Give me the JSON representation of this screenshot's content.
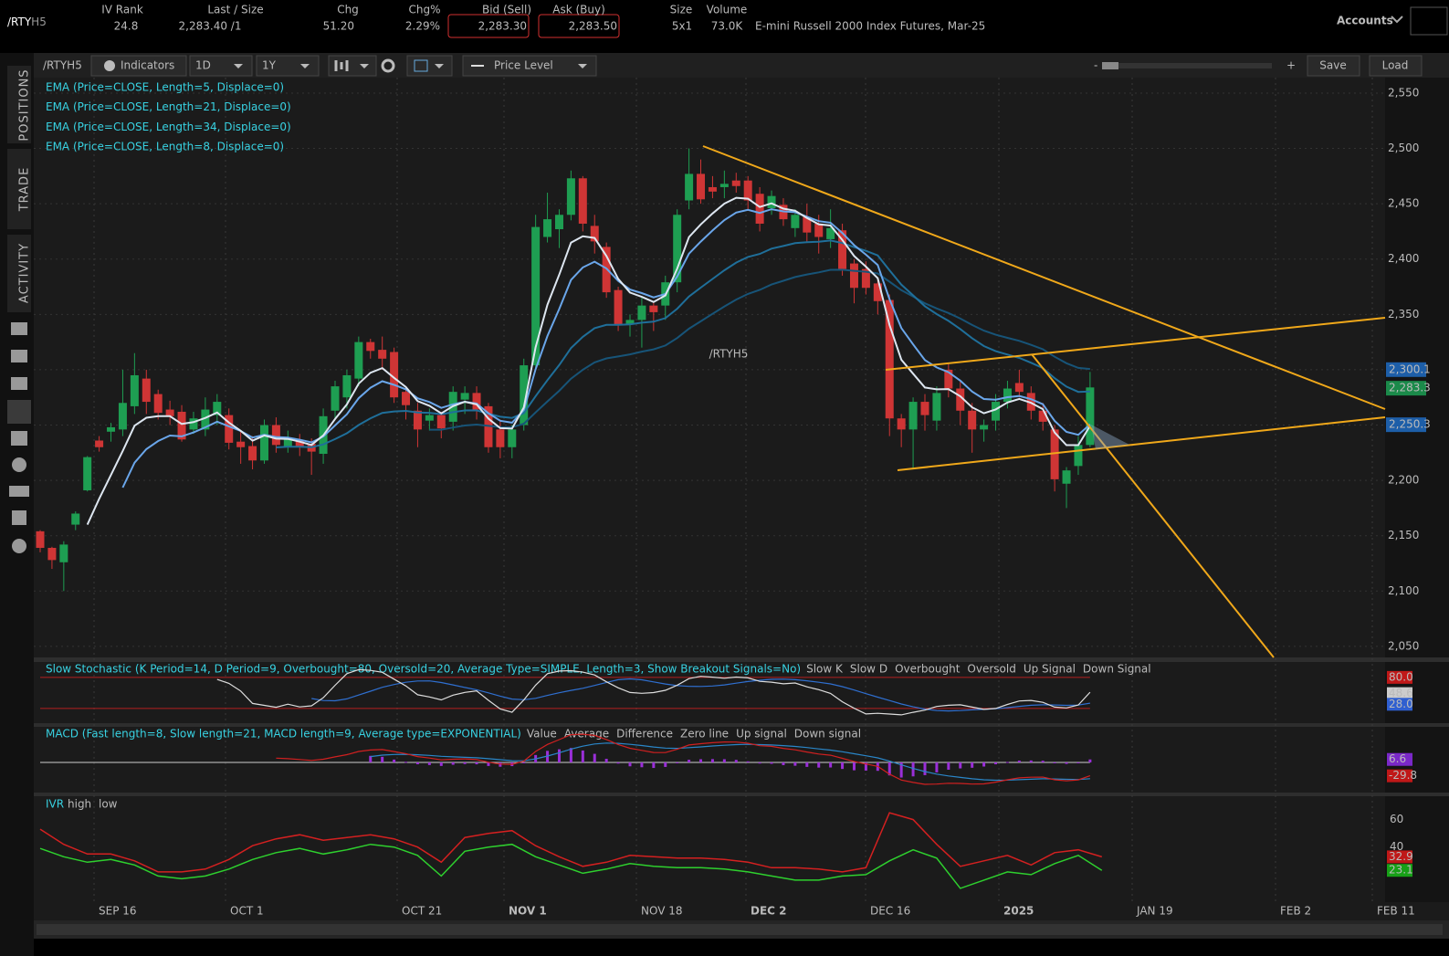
{
  "header": {
    "symbol_root": "/RTY",
    "symbol_month": "H5",
    "fields": [
      {
        "label": "IV Rank",
        "value": "24.8"
      },
      {
        "label": "Last / Size",
        "value": "2,283.40 /1"
      },
      {
        "label": "Chg",
        "value": "51.20"
      },
      {
        "label": "Chg%",
        "value": "2.29%"
      },
      {
        "label": "Bid (Sell)",
        "value": "2,283.30"
      },
      {
        "label": "Ask (Buy)",
        "value": "2,283.50"
      },
      {
        "label": "Size",
        "value": "5x1"
      },
      {
        "label": "Volume",
        "value": "73.0K"
      }
    ],
    "description": "E-mini Russell 2000 Index Futures, Mar-25",
    "accounts": "Accounts"
  },
  "toolbar": {
    "symbol": "/RTYH5",
    "indicators": "Indicators",
    "interval": "1D",
    "range": "1Y",
    "price_level": "Price Level",
    "zoom_out": "-",
    "zoom_in": "+",
    "save": "Save",
    "load": "Load"
  },
  "sidebar": [
    "POSITIONS",
    "TRADE",
    "ACTIVITY"
  ],
  "chart": {
    "type": "candlestick",
    "watermark": "/RTYH5",
    "studies": [
      "EMA (Price=CLOSE, Length=5, Displace=0)",
      "EMA (Price=CLOSE, Length=21, Displace=0)",
      "EMA (Price=CLOSE, Length=34, Displace=0)",
      "EMA (Price=CLOSE, Length=8, Displace=0)"
    ],
    "ema_lengths": [
      5,
      21,
      34,
      8
    ],
    "ema_colors": [
      "#dde6f0",
      "#1f6f9a",
      "#175478",
      "#6aa6ea"
    ],
    "up_color": "#1e9e52",
    "down_color": "#cf3535",
    "ylim": [
      2040,
      2564
    ],
    "yticks": [
      {
        "value": 2050,
        "label": "2,050"
      },
      {
        "value": 2100,
        "label": "2,100"
      },
      {
        "value": 2150,
        "label": "2,150"
      },
      {
        "value": 2200,
        "label": "2,200"
      },
      {
        "value": 2250,
        "label": "2,250"
      },
      {
        "value": 2300,
        "label": "2,300"
      },
      {
        "value": 2350,
        "label": "2,350"
      },
      {
        "value": 2400,
        "label": "2,400"
      },
      {
        "value": 2450,
        "label": "2,450"
      },
      {
        "value": 2500,
        "label": "2,500"
      },
      {
        "value": 2550,
        "label": "2,550"
      }
    ],
    "price_badges": [
      {
        "value": 2300.1,
        "label": "2,300.1",
        "color": "#1d5ea8"
      },
      {
        "value": 2283.3,
        "label": "2,283.3",
        "color": "#1b8a4a"
      },
      {
        "value": 2250.3,
        "label": "2,250.3",
        "color": "#1d5ea8"
      }
    ],
    "dates": [
      "SEP 16",
      "OCT 1",
      "OCT 21",
      "NOV 1",
      "NOV 18",
      "DEC 2",
      "DEC 16",
      "2025",
      "JAN 19",
      "FEB 2",
      "FEB 11"
    ],
    "ohlc": [
      [
        2154,
        2155,
        2135,
        2139
      ],
      [
        2139,
        2140,
        2120,
        2128
      ],
      [
        2126,
        2145,
        2100,
        2142
      ],
      [
        2160,
        2172,
        2155,
        2170
      ],
      [
        2191,
        2222,
        2190,
        2221
      ],
      [
        2236,
        2240,
        2226,
        2230
      ],
      [
        2244,
        2252,
        2235,
        2248
      ],
      [
        2246,
        2300,
        2240,
        2270
      ],
      [
        2267,
        2315,
        2260,
        2295
      ],
      [
        2292,
        2300,
        2260,
        2271
      ],
      [
        2278,
        2282,
        2255,
        2261
      ],
      [
        2264,
        2272,
        2250,
        2258
      ],
      [
        2262,
        2268,
        2235,
        2237
      ],
      [
        2246,
        2262,
        2242,
        2256
      ],
      [
        2246,
        2275,
        2240,
        2264
      ],
      [
        2259,
        2278,
        2250,
        2271
      ],
      [
        2259,
        2265,
        2228,
        2234
      ],
      [
        2235,
        2245,
        2215,
        2230
      ],
      [
        2231,
        2240,
        2210,
        2218
      ],
      [
        2218,
        2255,
        2215,
        2250
      ],
      [
        2250,
        2257,
        2225,
        2232
      ],
      [
        2231,
        2245,
        2225,
        2237
      ],
      [
        2236,
        2242,
        2222,
        2230
      ],
      [
        2233,
        2238,
        2205,
        2226
      ],
      [
        2224,
        2265,
        2215,
        2258
      ],
      [
        2263,
        2290,
        2255,
        2285
      ],
      [
        2275,
        2300,
        2265,
        2295
      ],
      [
        2292,
        2330,
        2285,
        2325
      ],
      [
        2325,
        2328,
        2310,
        2317
      ],
      [
        2318,
        2330,
        2300,
        2310
      ],
      [
        2316,
        2320,
        2270,
        2275
      ],
      [
        2280,
        2285,
        2255,
        2268
      ],
      [
        2263,
        2270,
        2230,
        2246
      ],
      [
        2254,
        2265,
        2245,
        2259
      ],
      [
        2259,
        2262,
        2238,
        2247
      ],
      [
        2253,
        2285,
        2245,
        2280
      ],
      [
        2273,
        2285,
        2260,
        2279
      ],
      [
        2279,
        2285,
        2255,
        2264
      ],
      [
        2267,
        2270,
        2225,
        2230
      ],
      [
        2246,
        2255,
        2220,
        2230
      ],
      [
        2230,
        2250,
        2220,
        2246
      ],
      [
        2250,
        2310,
        2245,
        2304
      ],
      [
        2304,
        2440,
        2300,
        2429
      ],
      [
        2420,
        2460,
        2415,
        2436
      ],
      [
        2427,
        2445,
        2410,
        2440
      ],
      [
        2440,
        2480,
        2435,
        2473
      ],
      [
        2473,
        2475,
        2425,
        2432
      ],
      [
        2430,
        2440,
        2405,
        2416
      ],
      [
        2411,
        2415,
        2365,
        2370
      ],
      [
        2372,
        2375,
        2335,
        2341
      ],
      [
        2341,
        2350,
        2330,
        2345
      ],
      [
        2345,
        2365,
        2320,
        2358
      ],
      [
        2358,
        2362,
        2335,
        2352
      ],
      [
        2358,
        2385,
        2345,
        2379
      ],
      [
        2379,
        2445,
        2370,
        2440
      ],
      [
        2453,
        2500,
        2445,
        2477
      ],
      [
        2477,
        2490,
        2450,
        2454
      ],
      [
        2465,
        2475,
        2455,
        2461
      ],
      [
        2465,
        2480,
        2455,
        2468
      ],
      [
        2471,
        2478,
        2460,
        2466
      ],
      [
        2471,
        2475,
        2445,
        2453
      ],
      [
        2459,
        2465,
        2425,
        2432
      ],
      [
        2446,
        2462,
        2440,
        2457
      ],
      [
        2449,
        2455,
        2430,
        2436
      ],
      [
        2428,
        2445,
        2420,
        2440
      ],
      [
        2438,
        2450,
        2415,
        2424
      ],
      [
        2432,
        2440,
        2405,
        2420
      ],
      [
        2418,
        2445,
        2410,
        2428
      ],
      [
        2426,
        2432,
        2385,
        2391
      ],
      [
        2396,
        2400,
        2360,
        2374
      ],
      [
        2391,
        2398,
        2368,
        2374
      ],
      [
        2378,
        2382,
        2350,
        2362
      ],
      [
        2363,
        2368,
        2240,
        2256
      ],
      [
        2256,
        2260,
        2230,
        2246
      ],
      [
        2246,
        2275,
        2210,
        2271
      ],
      [
        2271,
        2278,
        2245,
        2259
      ],
      [
        2254,
        2285,
        2245,
        2279
      ],
      [
        2300,
        2305,
        2275,
        2283
      ],
      [
        2283,
        2290,
        2250,
        2263
      ],
      [
        2263,
        2270,
        2225,
        2246
      ],
      [
        2246,
        2255,
        2235,
        2250
      ],
      [
        2254,
        2278,
        2245,
        2271
      ],
      [
        2271,
        2290,
        2265,
        2283
      ],
      [
        2288,
        2300,
        2275,
        2280
      ],
      [
        2279,
        2285,
        2255,
        2263
      ],
      [
        2263,
        2270,
        2245,
        2253
      ],
      [
        2246,
        2250,
        2190,
        2201
      ],
      [
        2197,
        2212,
        2175,
        2209
      ],
      [
        2213,
        2240,
        2205,
        2232
      ],
      [
        2232,
        2298,
        2230,
        2284
      ]
    ]
  },
  "stochastic": {
    "title": "Slow Stochastic (K Period=14, D Period=9, Overbought=80, Oversold=20, Average Type=SIMPLE, Length=3, Show Breakout Signals=No)",
    "legend": [
      {
        "name": "Slow K",
        "color": "#dddddd"
      },
      {
        "name": "Slow D",
        "color": "#2f6fd0"
      },
      {
        "name": "Overbought",
        "color": "#b42020"
      },
      {
        "name": "Oversold",
        "color": "#b42020"
      },
      {
        "name": "Up Signal",
        "color": "#22cc22"
      },
      {
        "name": "Down Signal",
        "color": "#e03030"
      }
    ],
    "k_period": 14,
    "d_period": 9,
    "length": 3,
    "oversold": 20,
    "ylim": [
      -5,
      108
    ],
    "badges": [
      {
        "value": 80,
        "label": "80.0",
        "color": "#c01818"
      },
      {
        "value": 48.6,
        "label": "48.6",
        "color": "#cccccc"
      },
      {
        "value": 28,
        "label": "28.0",
        "color": "#2f5fd0"
      }
    ]
  },
  "macd": {
    "title": "MACD (Fast length=8, Slow length=21, MACD length=9, Average type=EXPONENTIAL)",
    "legend": [
      {
        "name": "Value",
        "color": "#d02020"
      },
      {
        "name": "Average",
        "color": "#2a86c8"
      },
      {
        "name": "Difference",
        "color": "#cccccc"
      },
      {
        "name": "Zero line",
        "color": "#cccccc"
      },
      {
        "name": "Up signal",
        "color": "#22cc22"
      },
      {
        "name": "Down signal",
        "color": "#e03030"
      }
    ],
    "fast": 8,
    "slow": 21,
    "signal": 9,
    "hist_color": "#9a2fd8",
    "ylim": [
      -67,
      71
    ],
    "badges": [
      {
        "value": 6.6,
        "label": "6.6",
        "color": "#7a28c8"
      },
      {
        "value": -29.8,
        "label": "-29.8",
        "color": "#c01818"
      }
    ]
  },
  "ivr": {
    "title": "IVR",
    "ylim": [
      0,
      75
    ],
    "yticks": [
      40,
      60
    ],
    "series": [
      {
        "name": "high",
        "color": "#d42020",
        "values": [
          53,
          42,
          35,
          35,
          30,
          22,
          22,
          24,
          31,
          41,
          46,
          49,
          45,
          47,
          49,
          46,
          40,
          29,
          47,
          50,
          52,
          41,
          33,
          26,
          29,
          34,
          33,
          32,
          32,
          31,
          29,
          25,
          25,
          24,
          22,
          25,
          65,
          60,
          42,
          26,
          30,
          34,
          27,
          36,
          38,
          32.9
        ]
      },
      {
        "name": "low",
        "color": "#2ed02e",
        "values": [
          39,
          33,
          29,
          31,
          27,
          19,
          17,
          19,
          24,
          31,
          36,
          39,
          35,
          38,
          42,
          40,
          34,
          19,
          37,
          40,
          42,
          33,
          27,
          21,
          24,
          28,
          26,
          25,
          25,
          24,
          22,
          19,
          16,
          16,
          19,
          20,
          30,
          38,
          32,
          10,
          16,
          22,
          20,
          28,
          34,
          23.1
        ]
      }
    ],
    "badges": [
      {
        "value": 32.9,
        "label": "32.9",
        "color": "#c01818"
      },
      {
        "value": 23.1,
        "label": "23.1",
        "color": "#17a017"
      }
    ]
  }
}
